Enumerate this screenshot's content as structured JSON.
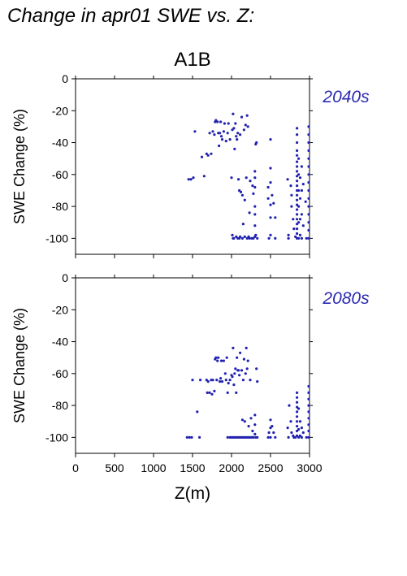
{
  "figure": {
    "title": "Change in apr01 SWE vs. Z:",
    "scenario": "A1B",
    "xlabel": "Z(m)"
  },
  "chart_data": [
    {
      "type": "scatter",
      "panel_label": "2040s",
      "ylabel": "SWE Change (%)",
      "xlim": [
        0,
        3000
      ],
      "ylim": [
        -110,
        0
      ],
      "xticks": [
        0,
        500,
        1000,
        1500,
        2000,
        2500,
        3000
      ],
      "yticks": [
        0,
        -20,
        -40,
        -60,
        -80,
        -100
      ],
      "color": "#2222b0",
      "points": [
        [
          1450,
          -63
        ],
        [
          1480,
          -63
        ],
        [
          1510,
          -62
        ],
        [
          1530,
          -33
        ],
        [
          1620,
          -49
        ],
        [
          1650,
          -61
        ],
        [
          1680,
          -47
        ],
        [
          1700,
          -48
        ],
        [
          1720,
          -34
        ],
        [
          1740,
          -47
        ],
        [
          1760,
          -33
        ],
        [
          1780,
          -35
        ],
        [
          1790,
          -27
        ],
        [
          1800,
          -26
        ],
        [
          1820,
          -27
        ],
        [
          1830,
          -34
        ],
        [
          1840,
          -42
        ],
        [
          1850,
          -34
        ],
        [
          1860,
          -27
        ],
        [
          1870,
          -36
        ],
        [
          1880,
          -38
        ],
        [
          1900,
          -33
        ],
        [
          1910,
          -28
        ],
        [
          1930,
          -39
        ],
        [
          1950,
          -34
        ],
        [
          1960,
          -28
        ],
        [
          1980,
          -38
        ],
        [
          2000,
          -62
        ],
        [
          2010,
          -32
        ],
        [
          2020,
          -22
        ],
        [
          2030,
          -31
        ],
        [
          2040,
          -44
        ],
        [
          2050,
          -28
        ],
        [
          2060,
          -36
        ],
        [
          2070,
          -38
        ],
        [
          2080,
          -34
        ],
        [
          2090,
          -63
        ],
        [
          2100,
          -70
        ],
        [
          2110,
          -35
        ],
        [
          2120,
          -71
        ],
        [
          2130,
          -24
        ],
        [
          2140,
          -73
        ],
        [
          2150,
          -91
        ],
        [
          2160,
          -32
        ],
        [
          2170,
          -76
        ],
        [
          2180,
          -29
        ],
        [
          2190,
          -62
        ],
        [
          2200,
          -23
        ],
        [
          2210,
          -30
        ],
        [
          2220,
          -99
        ],
        [
          2230,
          -84
        ],
        [
          2240,
          -64
        ],
        [
          2260,
          -100
        ],
        [
          2270,
          -67
        ],
        [
          2280,
          -72
        ],
        [
          2300,
          -58
        ],
        [
          2300,
          -62
        ],
        [
          2300,
          -68
        ],
        [
          2300,
          -80
        ],
        [
          2300,
          -85
        ],
        [
          2300,
          -92
        ],
        [
          2300,
          -99
        ],
        [
          2310,
          -41
        ],
        [
          2320,
          -40
        ],
        [
          2010,
          -98
        ],
        [
          2020,
          -100
        ],
        [
          2030,
          -100
        ],
        [
          2060,
          -99
        ],
        [
          2080,
          -100
        ],
        [
          2100,
          -100
        ],
        [
          2110,
          -99
        ],
        [
          2140,
          -100
        ],
        [
          2170,
          -99
        ],
        [
          2200,
          -100
        ],
        [
          2230,
          -100
        ],
        [
          2280,
          -100
        ],
        [
          2310,
          -98
        ],
        [
          2330,
          -100
        ],
        [
          2470,
          -68
        ],
        [
          2470,
          -75
        ],
        [
          2480,
          -100
        ],
        [
          2500,
          -38
        ],
        [
          2500,
          -56
        ],
        [
          2500,
          -65
        ],
        [
          2500,
          -79
        ],
        [
          2500,
          -87
        ],
        [
          2500,
          -98
        ],
        [
          2520,
          -73
        ],
        [
          2540,
          -78
        ],
        [
          2560,
          -100
        ],
        [
          2560,
          -87
        ],
        [
          2720,
          -63
        ],
        [
          2730,
          -98
        ],
        [
          2730,
          -100
        ],
        [
          2760,
          -67
        ],
        [
          2770,
          -73
        ],
        [
          2770,
          -80
        ],
        [
          2790,
          -88
        ],
        [
          2800,
          -94
        ],
        [
          2820,
          -99
        ],
        [
          2840,
          -31
        ],
        [
          2840,
          -35
        ],
        [
          2840,
          -40
        ],
        [
          2840,
          -45
        ],
        [
          2840,
          -48
        ],
        [
          2840,
          -52
        ],
        [
          2840,
          -55
        ],
        [
          2840,
          -58
        ],
        [
          2840,
          -61
        ],
        [
          2840,
          -64
        ],
        [
          2840,
          -67
        ],
        [
          2840,
          -70
        ],
        [
          2840,
          -73
        ],
        [
          2840,
          -76
        ],
        [
          2840,
          -79
        ],
        [
          2840,
          -82
        ],
        [
          2840,
          -85
        ],
        [
          2840,
          -88
        ],
        [
          2840,
          -91
        ],
        [
          2840,
          -94
        ],
        [
          2840,
          -97
        ],
        [
          2840,
          -100
        ],
        [
          2860,
          -50
        ],
        [
          2860,
          -60
        ],
        [
          2860,
          -70
        ],
        [
          2860,
          -80
        ],
        [
          2860,
          -90
        ],
        [
          2860,
          -100
        ],
        [
          2880,
          -62
        ],
        [
          2880,
          -75
        ],
        [
          2880,
          -88
        ],
        [
          2880,
          -98
        ],
        [
          2900,
          -55
        ],
        [
          2900,
          -70
        ],
        [
          2900,
          -85
        ],
        [
          2900,
          -100
        ],
        [
          2920,
          -66
        ],
        [
          2920,
          -92
        ],
        [
          2950,
          -77
        ],
        [
          2960,
          -100
        ],
        [
          2990,
          -30
        ],
        [
          2990,
          -35
        ],
        [
          2990,
          -40
        ],
        [
          2990,
          -45
        ],
        [
          2990,
          -50
        ],
        [
          2990,
          -55
        ],
        [
          2990,
          -60
        ],
        [
          2990,
          -65
        ],
        [
          2990,
          -70
        ],
        [
          2990,
          -75
        ],
        [
          2990,
          -80
        ],
        [
          2990,
          -85
        ],
        [
          2990,
          -90
        ],
        [
          2990,
          -95
        ],
        [
          2990,
          -100
        ]
      ]
    },
    {
      "type": "scatter",
      "panel_label": "2080s",
      "ylabel": "SWE Change (%)",
      "xlim": [
        0,
        3000
      ],
      "ylim": [
        -110,
        0
      ],
      "xticks": [
        0,
        500,
        1000,
        1500,
        2000,
        2500,
        3000
      ],
      "yticks": [
        0,
        -20,
        -40,
        -60,
        -80,
        -100
      ],
      "color": "#2222b0",
      "points": [
        [
          1430,
          -100
        ],
        [
          1460,
          -100
        ],
        [
          1490,
          -100
        ],
        [
          1500,
          -64
        ],
        [
          1560,
          -84
        ],
        [
          1590,
          -100
        ],
        [
          1600,
          -64
        ],
        [
          1680,
          -64
        ],
        [
          1690,
          -72
        ],
        [
          1700,
          -65
        ],
        [
          1720,
          -72
        ],
        [
          1740,
          -64
        ],
        [
          1750,
          -73
        ],
        [
          1760,
          -64
        ],
        [
          1780,
          -71
        ],
        [
          1790,
          -51
        ],
        [
          1800,
          -50
        ],
        [
          1810,
          -64
        ],
        [
          1820,
          -52
        ],
        [
          1830,
          -50
        ],
        [
          1850,
          -65
        ],
        [
          1860,
          -63
        ],
        [
          1870,
          -52
        ],
        [
          1880,
          -65
        ],
        [
          1900,
          -52
        ],
        [
          1920,
          -60
        ],
        [
          1930,
          -64
        ],
        [
          1940,
          -50
        ],
        [
          1950,
          -72
        ],
        [
          1960,
          -66
        ],
        [
          1980,
          -64
        ],
        [
          2000,
          -61
        ],
        [
          2010,
          -62
        ],
        [
          2020,
          -44
        ],
        [
          2030,
          -67
        ],
        [
          2040,
          -60
        ],
        [
          2050,
          -57
        ],
        [
          2060,
          -72
        ],
        [
          2070,
          -50
        ],
        [
          2080,
          -58
        ],
        [
          2090,
          -58
        ],
        [
          2100,
          -61
        ],
        [
          2110,
          -47
        ],
        [
          2130,
          -58
        ],
        [
          2140,
          -89
        ],
        [
          2150,
          -64
        ],
        [
          2160,
          -51
        ],
        [
          2170,
          -90
        ],
        [
          2180,
          -60
        ],
        [
          2190,
          -44
        ],
        [
          2200,
          -57
        ],
        [
          2210,
          -52
        ],
        [
          2220,
          -93
        ],
        [
          2240,
          -64
        ],
        [
          2250,
          -88
        ],
        [
          2270,
          -96
        ],
        [
          2300,
          -86
        ],
        [
          2300,
          -92
        ],
        [
          2300,
          -98
        ],
        [
          2320,
          -57
        ],
        [
          2330,
          -65
        ],
        [
          1950,
          -100
        ],
        [
          1980,
          -100
        ],
        [
          2000,
          -100
        ],
        [
          2020,
          -100
        ],
        [
          2040,
          -100
        ],
        [
          2060,
          -100
        ],
        [
          2080,
          -100
        ],
        [
          2100,
          -100
        ],
        [
          2120,
          -100
        ],
        [
          2140,
          -100
        ],
        [
          2160,
          -100
        ],
        [
          2180,
          -100
        ],
        [
          2200,
          -100
        ],
        [
          2220,
          -100
        ],
        [
          2240,
          -100
        ],
        [
          2260,
          -100
        ],
        [
          2280,
          -100
        ],
        [
          2310,
          -100
        ],
        [
          2330,
          -100
        ],
        [
          2470,
          -100
        ],
        [
          2480,
          -97
        ],
        [
          2500,
          -89
        ],
        [
          2500,
          -94
        ],
        [
          2500,
          -100
        ],
        [
          2520,
          -93
        ],
        [
          2540,
          -97
        ],
        [
          2560,
          -100
        ],
        [
          2720,
          -94
        ],
        [
          2730,
          -100
        ],
        [
          2740,
          -80
        ],
        [
          2760,
          -90
        ],
        [
          2770,
          -97
        ],
        [
          2790,
          -99
        ],
        [
          2800,
          -100
        ],
        [
          2820,
          -100
        ],
        [
          2840,
          -72
        ],
        [
          2840,
          -75
        ],
        [
          2840,
          -78
        ],
        [
          2840,
          -81
        ],
        [
          2840,
          -84
        ],
        [
          2840,
          -87
        ],
        [
          2840,
          -90
        ],
        [
          2840,
          -93
        ],
        [
          2840,
          -96
        ],
        [
          2840,
          -99
        ],
        [
          2860,
          -82
        ],
        [
          2860,
          -95
        ],
        [
          2860,
          -100
        ],
        [
          2880,
          -90
        ],
        [
          2880,
          -99
        ],
        [
          2900,
          -94
        ],
        [
          2900,
          -100
        ],
        [
          2920,
          -97
        ],
        [
          2960,
          -100
        ],
        [
          2990,
          -68
        ],
        [
          2990,
          -72
        ],
        [
          2990,
          -76
        ],
        [
          2990,
          -80
        ],
        [
          2990,
          -84
        ],
        [
          2990,
          -88
        ],
        [
          2990,
          -92
        ],
        [
          2990,
          -96
        ],
        [
          2990,
          -100
        ]
      ]
    }
  ]
}
